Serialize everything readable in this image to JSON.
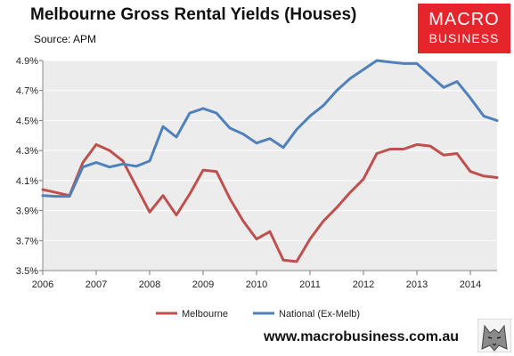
{
  "header": {
    "title": "Melbourne Gross Rental Yields (Houses)",
    "source": "Source: APM"
  },
  "logo": {
    "line1": "MACRO",
    "line2": "BUSINESS"
  },
  "footer": {
    "url": "www.macrobusiness.com.au"
  },
  "icons": {
    "logo_emblem": "wolf-emblem-icon"
  },
  "chart_data": {
    "type": "line",
    "title": "Melbourne Gross Rental Yields (Houses)",
    "xlabel": "",
    "ylabel": "",
    "xlim": [
      2006,
      2014.5
    ],
    "ylim": [
      3.5,
      4.9
    ],
    "x_ticks": [
      "2006",
      "2007",
      "2008",
      "2009",
      "2010",
      "2011",
      "2012",
      "2013",
      "2014"
    ],
    "y_ticks": [
      "4.9%",
      "4.7%",
      "4.5%",
      "4.3%",
      "4.1%",
      "3.9%",
      "3.7%",
      "3.5%"
    ],
    "y_tick_values": [
      4.9,
      4.7,
      4.5,
      4.3,
      4.1,
      3.9,
      3.7,
      3.5
    ],
    "grid": "horizontal",
    "background": "#ececec",
    "legend": "bottom",
    "x": [
      2006,
      2006.25,
      2006.5,
      2006.75,
      2007,
      2007.25,
      2007.5,
      2007.75,
      2008,
      2008.25,
      2008.5,
      2008.75,
      2009,
      2009.25,
      2009.5,
      2009.75,
      2010,
      2010.25,
      2010.5,
      2010.75,
      2011,
      2011.25,
      2011.5,
      2011.75,
      2012,
      2012.25,
      2012.5,
      2012.75,
      2013,
      2013.25,
      2013.5,
      2013.75,
      2014,
      2014.25,
      2014.5
    ],
    "series": [
      {
        "name": "Melbourne",
        "color": "#c0504d",
        "values": [
          4.04,
          4.02,
          4.0,
          4.22,
          4.34,
          4.3,
          4.23,
          4.06,
          3.89,
          4.0,
          3.87,
          4.01,
          4.17,
          4.16,
          3.98,
          3.83,
          3.71,
          3.76,
          3.57,
          3.56,
          3.71,
          3.83,
          3.92,
          4.02,
          4.11,
          4.28,
          4.31,
          4.31,
          4.34,
          4.33,
          4.27,
          4.28,
          4.16,
          4.13,
          4.12
        ]
      },
      {
        "name": "National (Ex-Melb)",
        "color": "#4f81bd",
        "values": [
          4.0,
          3.995,
          3.995,
          4.19,
          4.22,
          4.19,
          4.21,
          4.195,
          4.23,
          4.46,
          4.39,
          4.55,
          4.58,
          4.55,
          4.45,
          4.41,
          4.35,
          4.38,
          4.32,
          4.44,
          4.53,
          4.6,
          4.7,
          4.78,
          4.84,
          4.9,
          4.89,
          4.88,
          4.88,
          4.8,
          4.72,
          4.76,
          4.65,
          4.53,
          4.5
        ]
      }
    ]
  }
}
